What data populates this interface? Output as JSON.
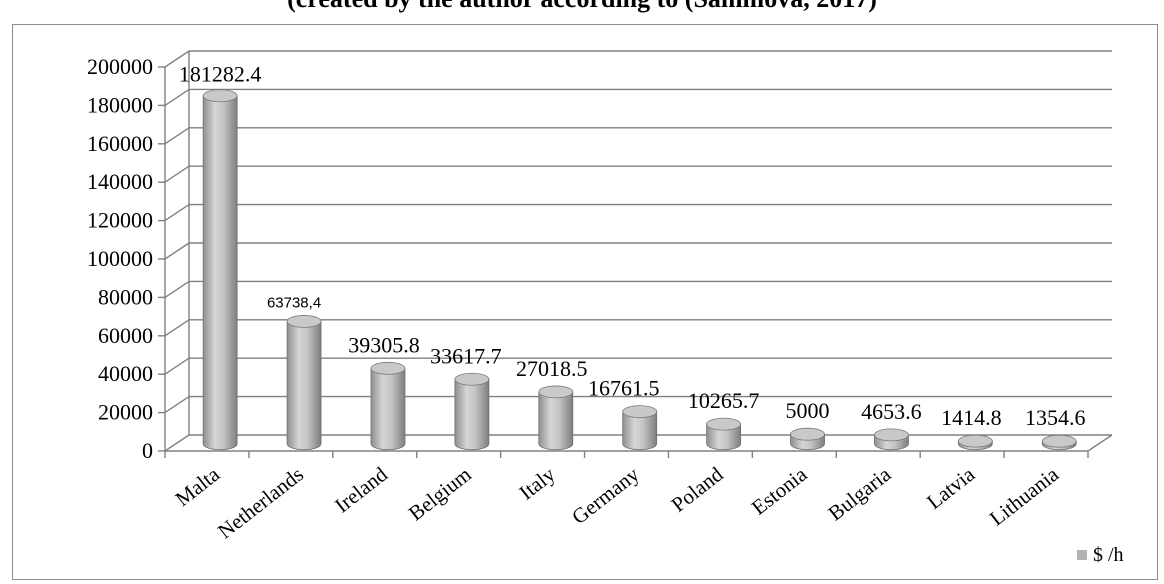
{
  "caption": "(created by the author according to (Sammova, 2017)",
  "chart_data": {
    "type": "bar",
    "categories": [
      "Malta",
      "Netherlands",
      "Ireland",
      "Belgium",
      "Italy",
      "Germany",
      "Poland",
      "Estonia",
      "Bulgaria",
      "Latvia",
      "Lithuania"
    ],
    "series": [
      {
        "name": "$ /h",
        "values": [
          181282.4,
          63738.4,
          39305.8,
          33617.7,
          27018.5,
          16761.5,
          10265.7,
          5000,
          4653.6,
          1414.8,
          1354.6
        ]
      }
    ],
    "data_labels": [
      "181282.4",
      "63738,4",
      "39305.8",
      "33617.7",
      "27018.5",
      "16761.5",
      "10265.7",
      "5000",
      "4653.6",
      "1414.8",
      "1354.6"
    ],
    "y_ticks": [
      "0",
      "20000",
      "40000",
      "60000",
      "80000",
      "100000",
      "120000",
      "140000",
      "160000",
      "180000",
      "200000"
    ],
    "ylim": [
      0,
      200000
    ],
    "grid": true,
    "legend_position": "bottom-right",
    "colors": {
      "bar": "#b3b3b3",
      "grid": "#808080"
    }
  }
}
